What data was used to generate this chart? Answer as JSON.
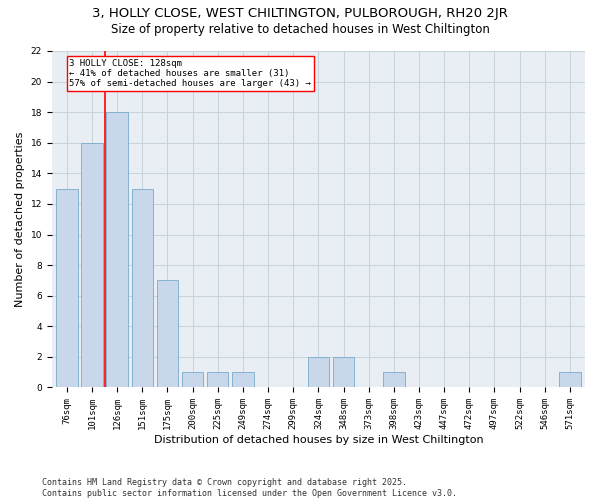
{
  "title": "3, HOLLY CLOSE, WEST CHILTINGTON, PULBOROUGH, RH20 2JR",
  "subtitle": "Size of property relative to detached houses in West Chiltington",
  "xlabel": "Distribution of detached houses by size in West Chiltington",
  "ylabel": "Number of detached properties",
  "categories": [
    "76sqm",
    "101sqm",
    "126sqm",
    "151sqm",
    "175sqm",
    "200sqm",
    "225sqm",
    "249sqm",
    "274sqm",
    "299sqm",
    "324sqm",
    "348sqm",
    "373sqm",
    "398sqm",
    "423sqm",
    "447sqm",
    "472sqm",
    "497sqm",
    "522sqm",
    "546sqm",
    "571sqm"
  ],
  "values": [
    13,
    16,
    18,
    13,
    7,
    1,
    1,
    1,
    0,
    0,
    2,
    2,
    0,
    1,
    0,
    0,
    0,
    0,
    0,
    0,
    1
  ],
  "bar_color": "#c8d8ea",
  "bar_edge_color": "#7aaac8",
  "vline_x": 1.5,
  "vline_color": "red",
  "annotation_text": "3 HOLLY CLOSE: 128sqm\n← 41% of detached houses are smaller (31)\n57% of semi-detached houses are larger (43) →",
  "annotation_box_color": "white",
  "annotation_box_edge": "red",
  "ylim": [
    0,
    22
  ],
  "yticks": [
    0,
    2,
    4,
    6,
    8,
    10,
    12,
    14,
    16,
    18,
    20,
    22
  ],
  "footnote": "Contains HM Land Registry data © Crown copyright and database right 2025.\nContains public sector information licensed under the Open Government Licence v3.0.",
  "bg_color": "#e8eef4",
  "grid_color": "#c8d4dc",
  "title_fontsize": 9.5,
  "subtitle_fontsize": 8.5,
  "label_fontsize": 8,
  "tick_fontsize": 6.5,
  "footnote_fontsize": 6
}
